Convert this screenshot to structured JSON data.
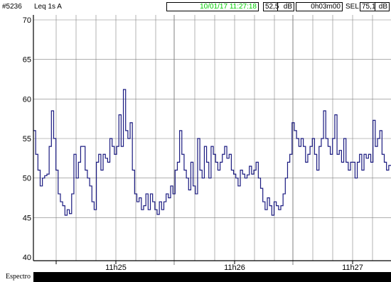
{
  "header": {
    "record_id": "#5236",
    "measure": "Leq 1s  A",
    "datetime": "10/01/17 11:27:18",
    "level_value": "52,5",
    "level_unit": "dB",
    "duration": "0h03m00",
    "sel_label": "SEL",
    "sel_value": "75,1",
    "sel_unit": "dB"
  },
  "footer": {
    "label": "Espectro"
  },
  "colors": {
    "line": "#1a1a80",
    "grid": "#808080",
    "datetime_text": "#00cc00",
    "footer_bar": "#000000"
  },
  "chart_data": {
    "type": "line",
    "title": "",
    "xlabel": "",
    "ylabel": "",
    "y_ticks": [
      40,
      45,
      50,
      55,
      60,
      65,
      70
    ],
    "ylim": [
      40,
      70
    ],
    "x_ticks": [
      "11h25",
      "11h26",
      "11h27"
    ],
    "grid": true,
    "step": true,
    "series": [
      {
        "values": [
          56,
          53,
          51,
          49,
          50,
          50.3,
          50.5,
          54,
          58.5,
          55,
          51,
          48,
          47,
          46.5,
          45.3,
          46,
          45.5,
          48,
          53,
          50,
          52,
          54,
          54,
          51,
          50,
          49,
          47,
          46,
          52,
          53,
          51,
          53,
          52.5,
          52,
          55,
          54,
          53,
          54,
          58,
          54,
          61.2,
          56,
          55,
          57,
          51,
          48,
          47,
          47.5,
          46,
          46.5,
          48,
          46,
          48,
          47,
          46,
          45.4,
          47,
          46,
          47,
          48,
          47.5,
          49,
          48,
          51,
          52,
          56,
          53,
          51,
          50,
          48.5,
          52,
          49,
          48,
          55,
          51,
          50,
          54,
          52,
          50,
          54,
          53,
          52,
          51,
          52,
          53,
          54,
          52.5,
          53,
          51,
          50.5,
          50,
          49,
          51,
          50.5,
          50,
          50.4,
          51.5,
          50.5,
          51,
          52,
          50,
          48.7,
          47,
          46,
          47.5,
          46.5,
          45.3,
          47,
          46.5,
          46,
          46.5,
          48,
          50,
          52,
          53,
          57,
          56,
          55,
          54,
          55,
          54,
          52,
          53,
          54,
          55,
          53,
          51,
          54,
          55,
          58.5,
          55,
          54,
          53,
          55,
          58,
          53,
          53.5,
          52,
          55,
          52,
          51,
          52,
          52,
          50,
          52,
          53,
          51,
          53,
          52.5,
          53,
          52,
          57.3,
          54,
          55,
          56,
          53,
          52,
          51,
          51.6
        ]
      }
    ]
  }
}
